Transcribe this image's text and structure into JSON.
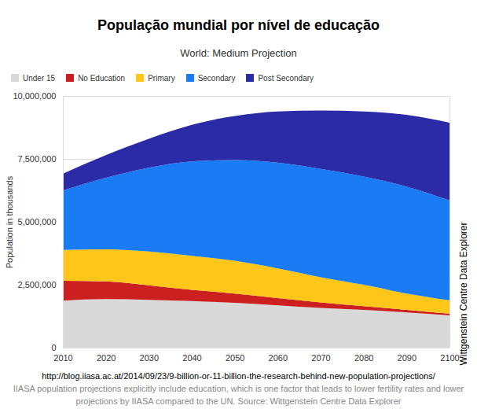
{
  "chart_data": {
    "type": "area",
    "stacked": true,
    "title": "População mundial por nível de educação",
    "subtitle": "World: Medium Projection",
    "y_label": "Population in thousands",
    "annotations": [
      "Wittgenstein Centre Data Explorer"
    ],
    "caption": [
      "http://blog.iiasa.ac.at/2014/09/23/9-billion-or-11-billion-the-research-behind-new-population-projections/",
      "IIASA population projections explicitly include education, which is one factor that leads to lower fertility rates and lower projections by IIASA compared to the UN. Source: Wittgenstein Centre Data Explorer"
    ],
    "x": [
      2010,
      2020,
      2030,
      2040,
      2050,
      2060,
      2070,
      2080,
      2090,
      2100
    ],
    "series": [
      {
        "name": "Under 15",
        "color": "#d9d9d9",
        "values": [
          1870000,
          1930000,
          1900000,
          1850000,
          1780000,
          1680000,
          1580000,
          1500000,
          1400000,
          1280000
        ]
      },
      {
        "name": "No Education",
        "color": "#cc1f1f",
        "values": [
          790000,
          700000,
          580000,
          450000,
          370000,
          290000,
          220000,
          150000,
          100000,
          70000
        ]
      },
      {
        "name": "Primary",
        "color": "#ffc61a",
        "values": [
          1220000,
          1280000,
          1340000,
          1350000,
          1300000,
          1180000,
          1000000,
          850000,
          650000,
          530000
        ]
      },
      {
        "name": "Secondary",
        "color": "#1a7cf5",
        "values": [
          2360000,
          2840000,
          3330000,
          3750000,
          4000000,
          4200000,
          4300000,
          4300000,
          4250000,
          3970000
        ]
      },
      {
        "name": "Post Secondary",
        "color": "#2b2ba8",
        "values": [
          670000,
          900000,
          1150000,
          1450000,
          1750000,
          2030000,
          2320000,
          2580000,
          2850000,
          3090000
        ]
      }
    ],
    "xlim": [
      2010,
      2100
    ],
    "xticks": [
      2010,
      2020,
      2030,
      2040,
      2050,
      2060,
      2070,
      2080,
      2090,
      2100
    ],
    "ylim": [
      0,
      10000000
    ],
    "yticks": [
      0,
      {
        "value": 2500000,
        "label": "2,500,000"
      },
      {
        "value": 5000000,
        "label": "5,000,000"
      },
      {
        "value": 7500000,
        "label": "7,500,000"
      },
      {
        "value": 10000000,
        "label": "10,000,000"
      }
    ],
    "grid": true,
    "legend": "top-left"
  }
}
